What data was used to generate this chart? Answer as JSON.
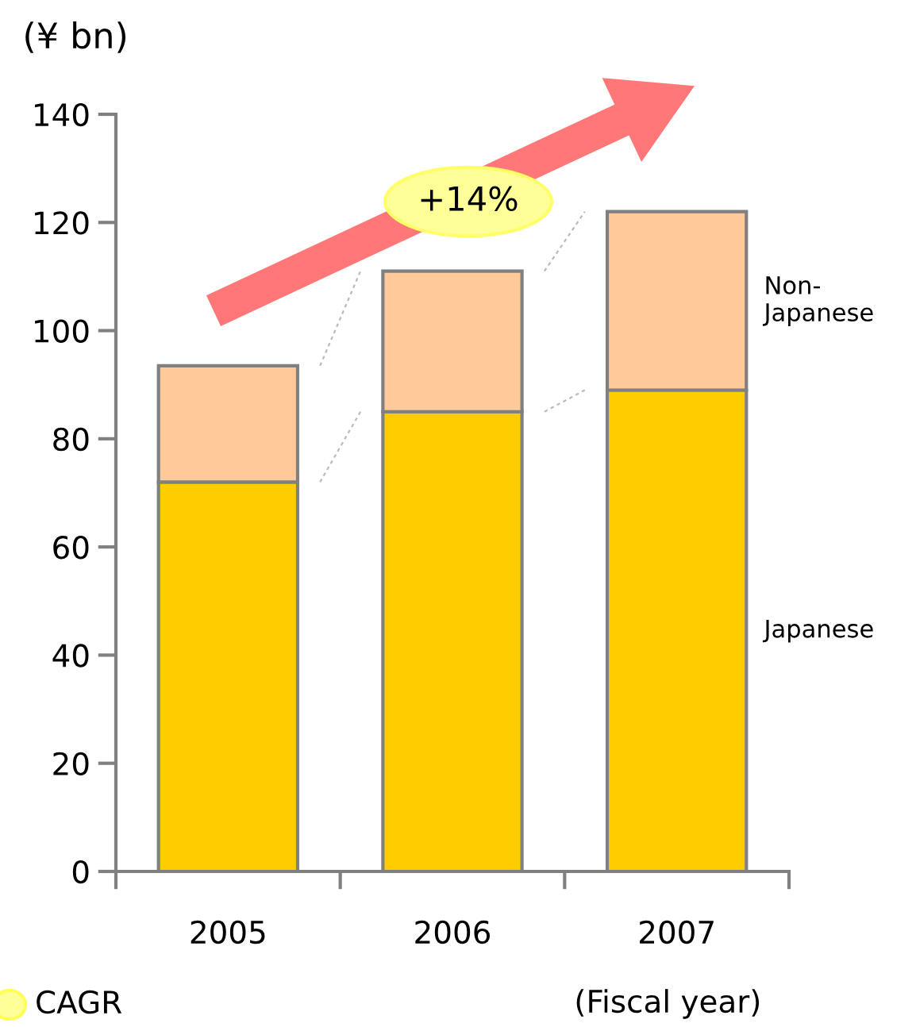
{
  "chart_data": {
    "type": "bar",
    "stacked": true,
    "ylabel": "(¥ bn)",
    "xlabel": "(Fiscal year)",
    "categories": [
      "2005",
      "2006",
      "2007"
    ],
    "series": [
      {
        "name": "Japanese",
        "color": "#ffcc00",
        "values": [
          72,
          85,
          89
        ]
      },
      {
        "name": "Non-\nJapanese",
        "color": "#ffc999",
        "values": [
          21.5,
          26,
          33
        ]
      }
    ],
    "ylim": [
      0,
      140
    ],
    "yticks": [
      0,
      20,
      40,
      60,
      80,
      100,
      120,
      140
    ],
    "grid": false,
    "legend": false,
    "annotations": [
      "+14%",
      "CAGR"
    ]
  }
}
